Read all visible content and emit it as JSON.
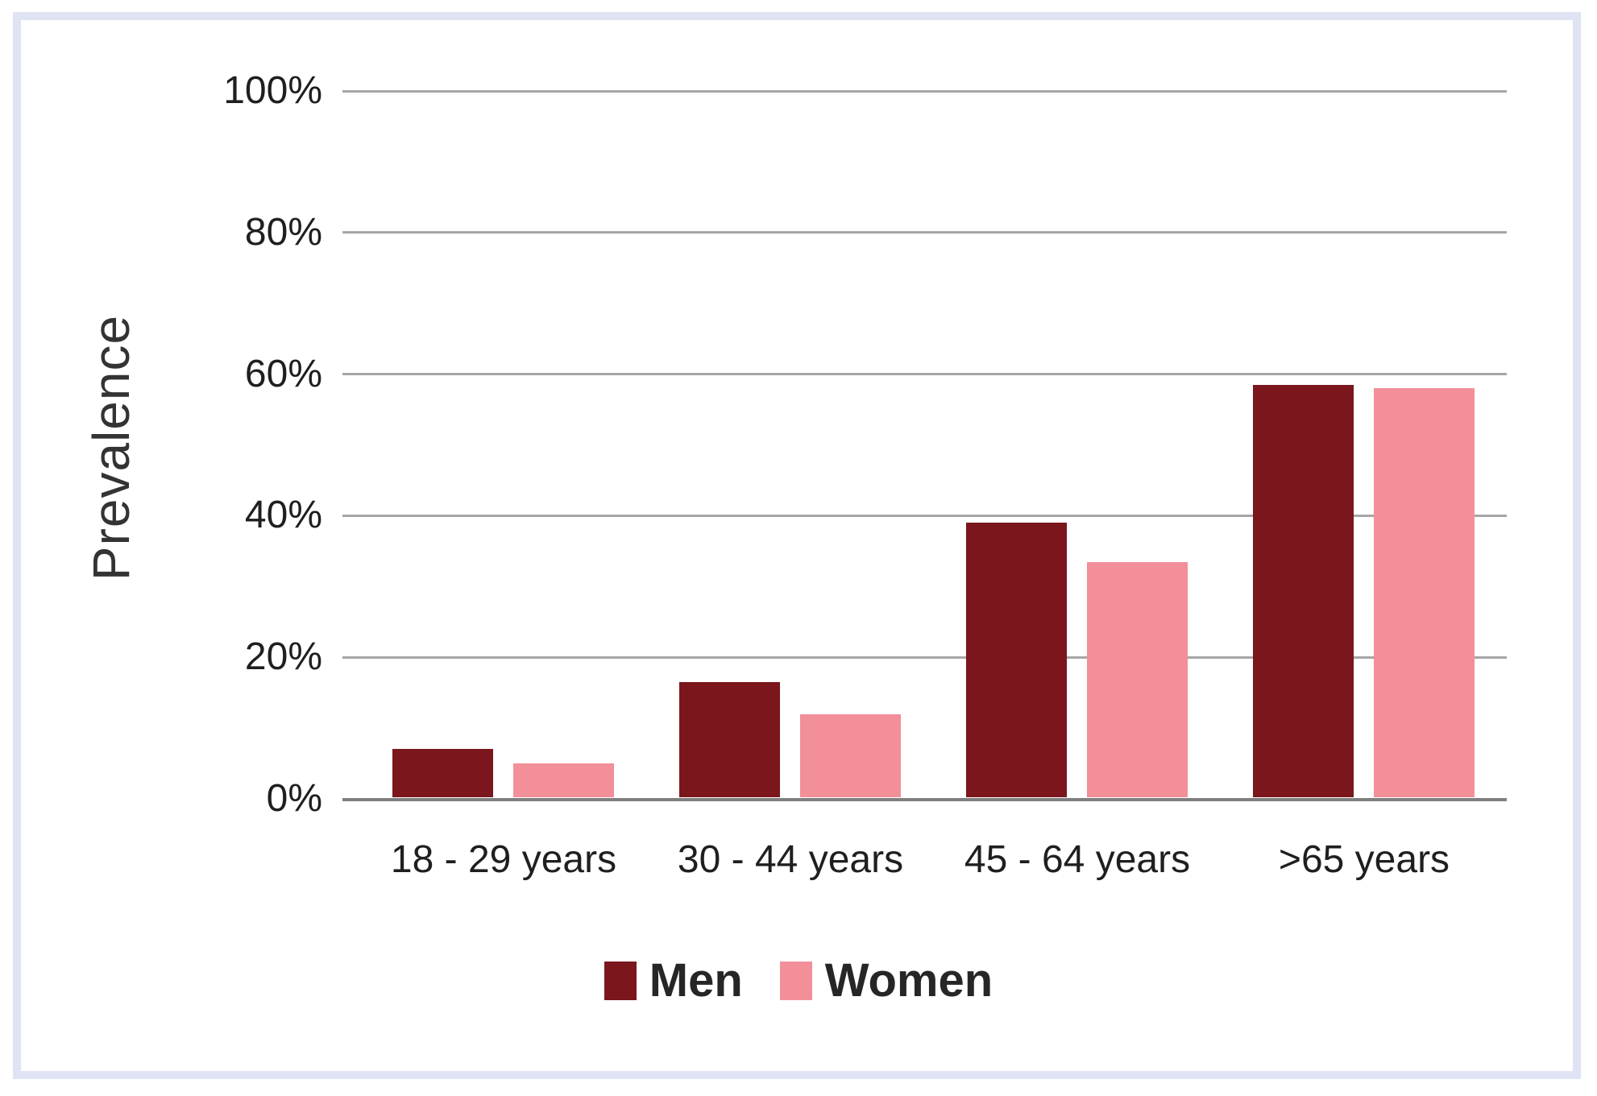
{
  "chart_data": {
    "type": "bar",
    "title": "",
    "xlabel": "",
    "ylabel": "Prevalence",
    "categories": [
      "18 - 29 years",
      "30 - 44 years",
      "45 - 64 years",
      ">65 years"
    ],
    "series": [
      {
        "name": "Men",
        "color": "#7a161c",
        "values": [
          7,
          16.5,
          39,
          58.5
        ]
      },
      {
        "name": "Women",
        "color": "#f28f99",
        "values": [
          5,
          12,
          33.5,
          58
        ]
      }
    ],
    "ylim": [
      0,
      100
    ],
    "y_tick_values": [
      0,
      20,
      40,
      60,
      80,
      100
    ],
    "y_tick_labels": [
      "0%",
      "20%",
      "40%",
      "60%",
      "80%",
      "100%"
    ],
    "grid": "horizontal",
    "legend_position": "bottom"
  },
  "colors": {
    "background": "#ffffff",
    "frame_border": "#dfe3f3",
    "gridline": "#a6a6a6",
    "axis_baseline": "#7f7f7f",
    "tick_text": "#1f1f1f",
    "axis_title_text": "#333333",
    "legend_text": "#262626"
  }
}
